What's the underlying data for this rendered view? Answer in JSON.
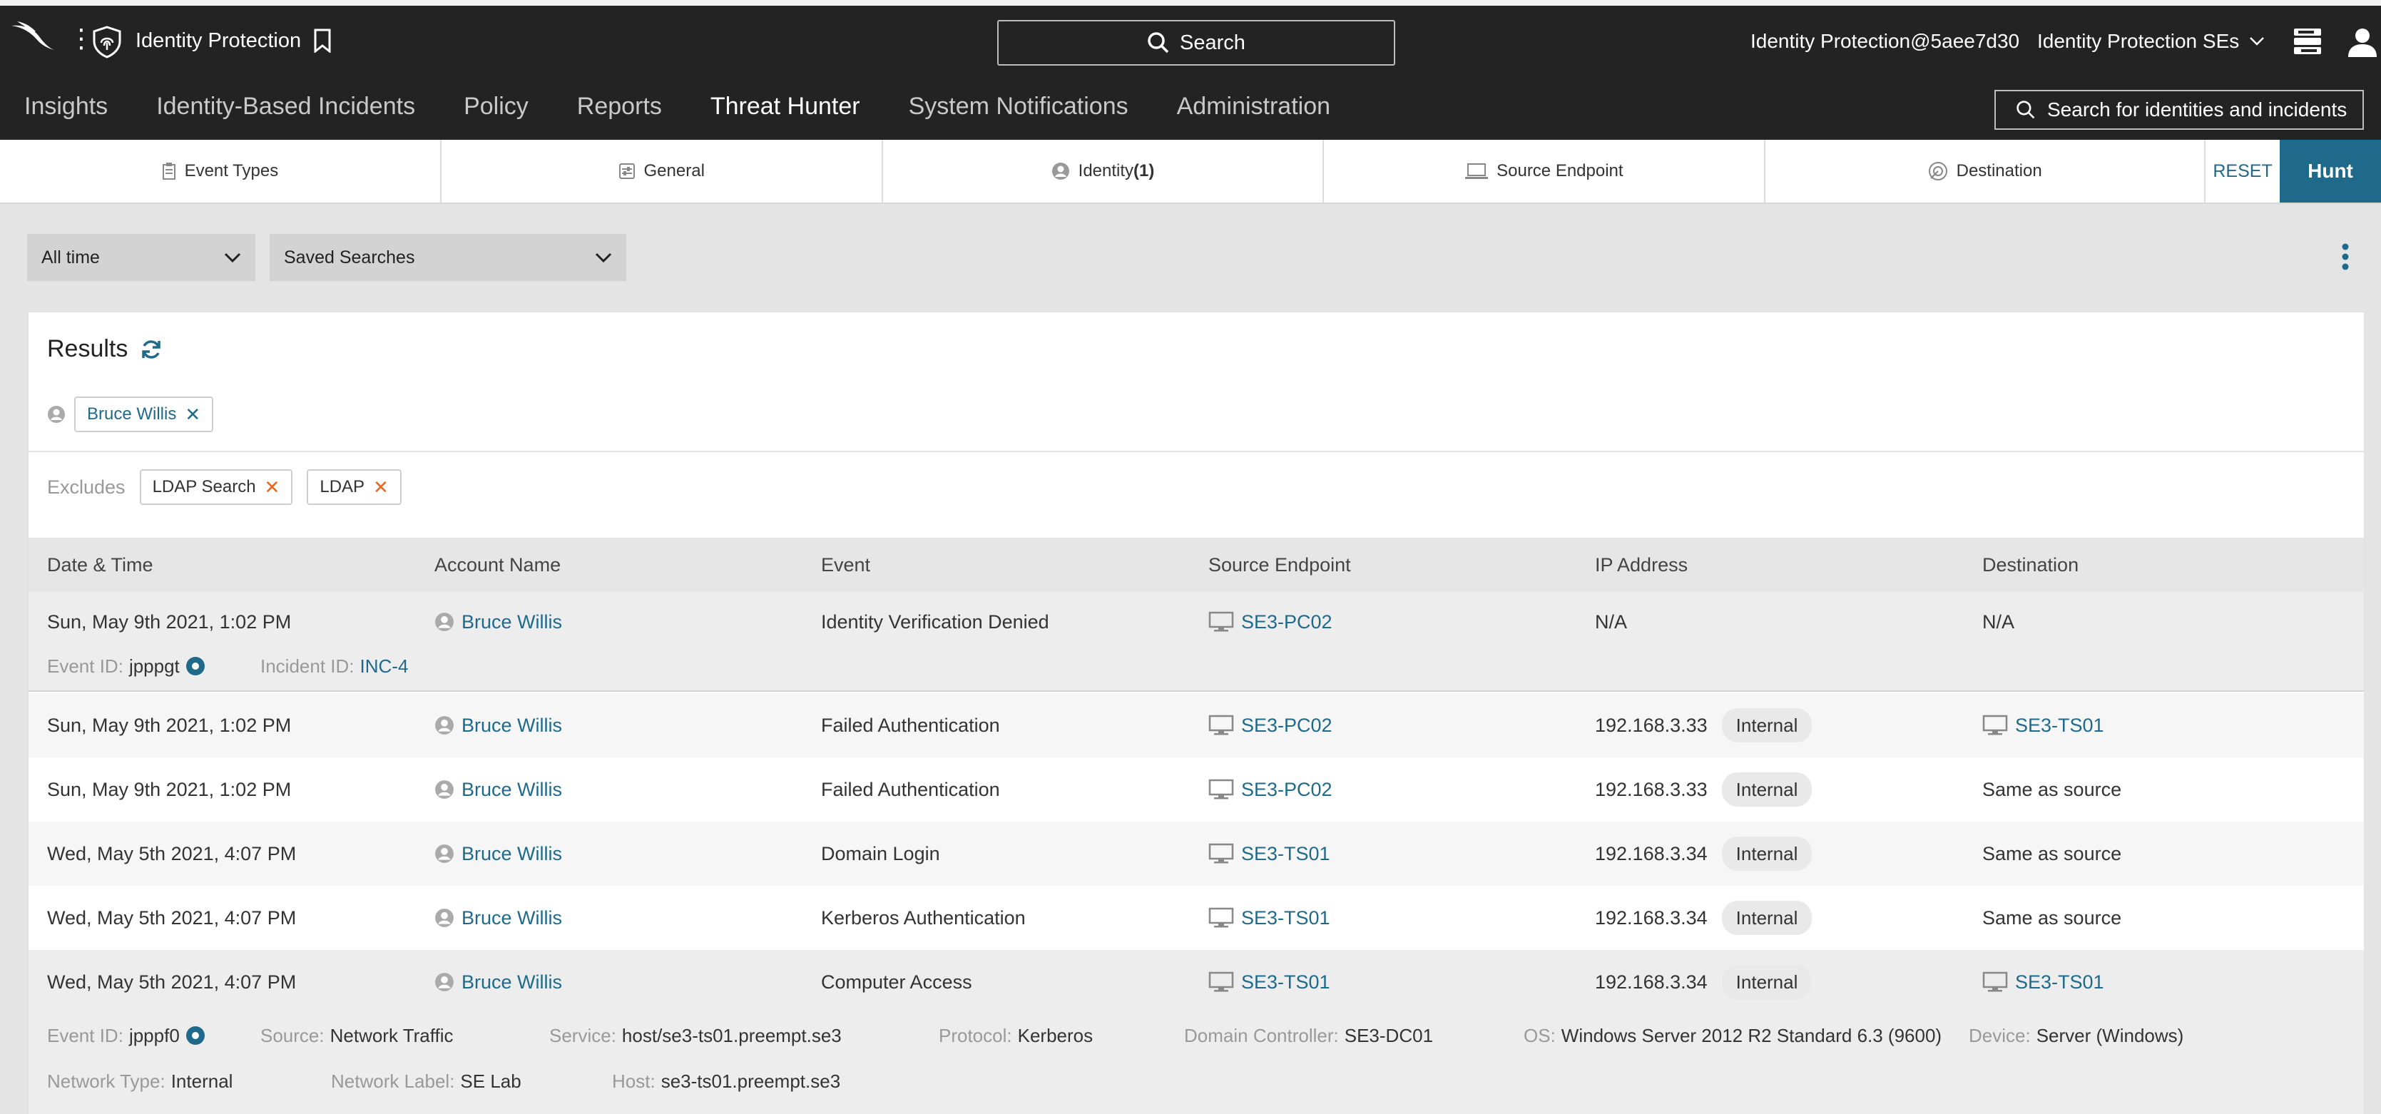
{
  "topbar": {
    "app_title": "Identity Protection",
    "search_label": "Search",
    "user": "Identity Protection@5aee7d30",
    "tenant": "Identity Protection SEs",
    "identity_search_placeholder": "Search for identities and incidents"
  },
  "nav": [
    "Insights",
    "Identity-Based Incidents",
    "Policy",
    "Reports",
    "Threat Hunter",
    "System Notifications",
    "Administration"
  ],
  "nav_active": "Threat Hunter",
  "filter_tabs": {
    "event_types": "Event Types",
    "general": "General",
    "identity": "Identity",
    "identity_count": "(1)",
    "source_endpoint": "Source Endpoint",
    "destination": "Destination",
    "reset": "RESET",
    "hunt": "Hunt"
  },
  "dropdowns": {
    "time": "All time",
    "saved": "Saved Searches"
  },
  "results": {
    "title": "Results",
    "identity_chip": "Bruce Willis",
    "excludes_label": "Excludes",
    "excludes": [
      "LDAP Search",
      "LDAP"
    ]
  },
  "table": {
    "headers": [
      "Date & Time",
      "Account Name",
      "Event",
      "Source Endpoint",
      "IP Address",
      "Destination"
    ],
    "rows": [
      {
        "date": "Sun, May 9th 2021, 1:02 PM",
        "account": "Bruce Willis",
        "event": "Identity Verification Denied",
        "source": "SE3-PC02",
        "ip": "N/A",
        "ip_tag": "",
        "dest": "N/A"
      },
      {
        "date": "Sun, May 9th 2021, 1:02 PM",
        "account": "Bruce Willis",
        "event": "Failed Authentication",
        "source": "SE3-PC02",
        "ip": "192.168.3.33",
        "ip_tag": "Internal",
        "dest": "SE3-TS01"
      },
      {
        "date": "Sun, May 9th 2021, 1:02 PM",
        "account": "Bruce Willis",
        "event": "Failed Authentication",
        "source": "SE3-PC02",
        "ip": "192.168.3.33",
        "ip_tag": "Internal",
        "dest": "Same as source"
      },
      {
        "date": "Wed, May 5th 2021, 4:07 PM",
        "account": "Bruce Willis",
        "event": "Domain Login",
        "source": "SE3-TS01",
        "ip": "192.168.3.34",
        "ip_tag": "Internal",
        "dest": "Same as source"
      },
      {
        "date": "Wed, May 5th 2021, 4:07 PM",
        "account": "Bruce Willis",
        "event": "Kerberos Authentication",
        "source": "SE3-TS01",
        "ip": "192.168.3.34",
        "ip_tag": "Internal",
        "dest": "Same as source"
      },
      {
        "date": "Wed, May 5th 2021, 4:07 PM",
        "account": "Bruce Willis",
        "event": "Computer Access",
        "source": "SE3-TS01",
        "ip": "192.168.3.34",
        "ip_tag": "Internal",
        "dest": "SE3-TS01"
      }
    ],
    "row1_meta": {
      "event_id_label": "Event ID:",
      "event_id": "jpppgt",
      "incident_id_label": "Incident ID:",
      "incident_id": "INC-4"
    },
    "row6_meta": {
      "event_id_label": "Event ID:",
      "event_id": "jpppf0",
      "source_label": "Source:",
      "source": "Network Traffic",
      "service_label": "Service:",
      "service": "host/se3-ts01.preempt.se3",
      "protocol_label": "Protocol:",
      "protocol": "Kerberos",
      "dc_label": "Domain Controller:",
      "dc": "SE3-DC01",
      "os_label": "OS:",
      "os": "Windows Server 2012 R2 Standard 6.3 (9600)",
      "device_label": "Device:",
      "device": "Server (Windows)",
      "network_type_label": "Network Type:",
      "network_type": "Internal",
      "network_label_label": "Network Label:",
      "network_label": "SE Lab",
      "host_label": "Host:",
      "host": "se3-ts01.preempt.se3"
    }
  },
  "colors": {
    "accent": "#1f6a8a",
    "nav_active": "#e0242b",
    "exclude_x": "#e8661f",
    "topbar": "#232323"
  }
}
